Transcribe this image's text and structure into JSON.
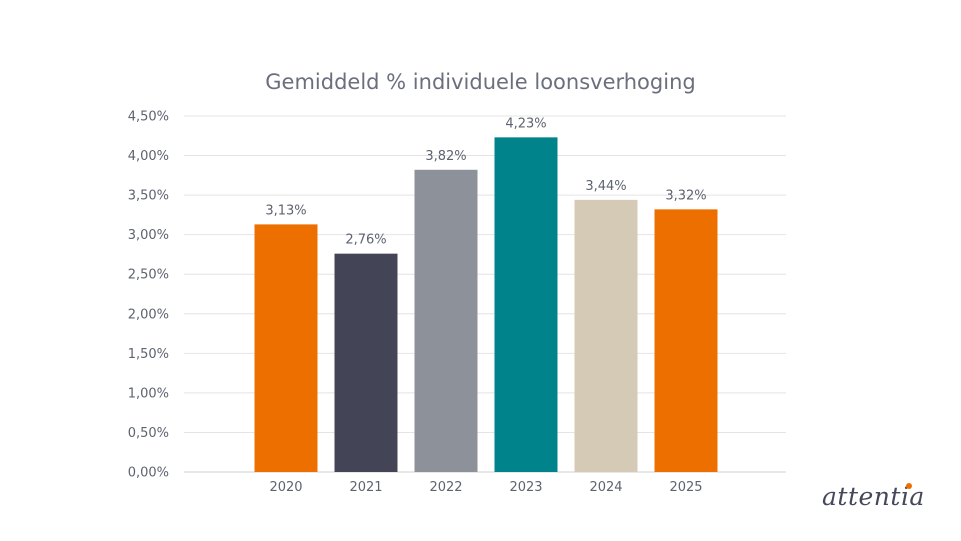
{
  "chart_data": {
    "type": "bar",
    "title": "Gemiddeld % individuele loonsverhoging",
    "xlabel": "",
    "ylabel": "",
    "categories": [
      "2020",
      "2021",
      "2022",
      "2023",
      "2024",
      "2025"
    ],
    "values": [
      3.13,
      2.76,
      3.82,
      4.23,
      3.44,
      3.32
    ],
    "data_labels": [
      "3,13%",
      "2,76%",
      "3,82%",
      "4,23%",
      "3,44%",
      "3,32%"
    ],
    "bar_colors": [
      "#ed6f00",
      "#434455",
      "#8d929a",
      "#00838a",
      "#d5cab6",
      "#ed6f00"
    ],
    "ylim": [
      0,
      4.5
    ],
    "yticks": [
      0,
      0.5,
      1,
      1.5,
      2,
      2.5,
      3,
      3.5,
      4,
      4.5
    ],
    "ytick_labels": [
      "0,00%",
      "0,50%",
      "1,00%",
      "1,50%",
      "2,00%",
      "2,50%",
      "3,00%",
      "3,50%",
      "4,00%",
      "4,50%"
    ],
    "grid": true,
    "legend": "none"
  },
  "brand": {
    "logo_text": "attentia",
    "accent_color": "#ed6f00"
  }
}
